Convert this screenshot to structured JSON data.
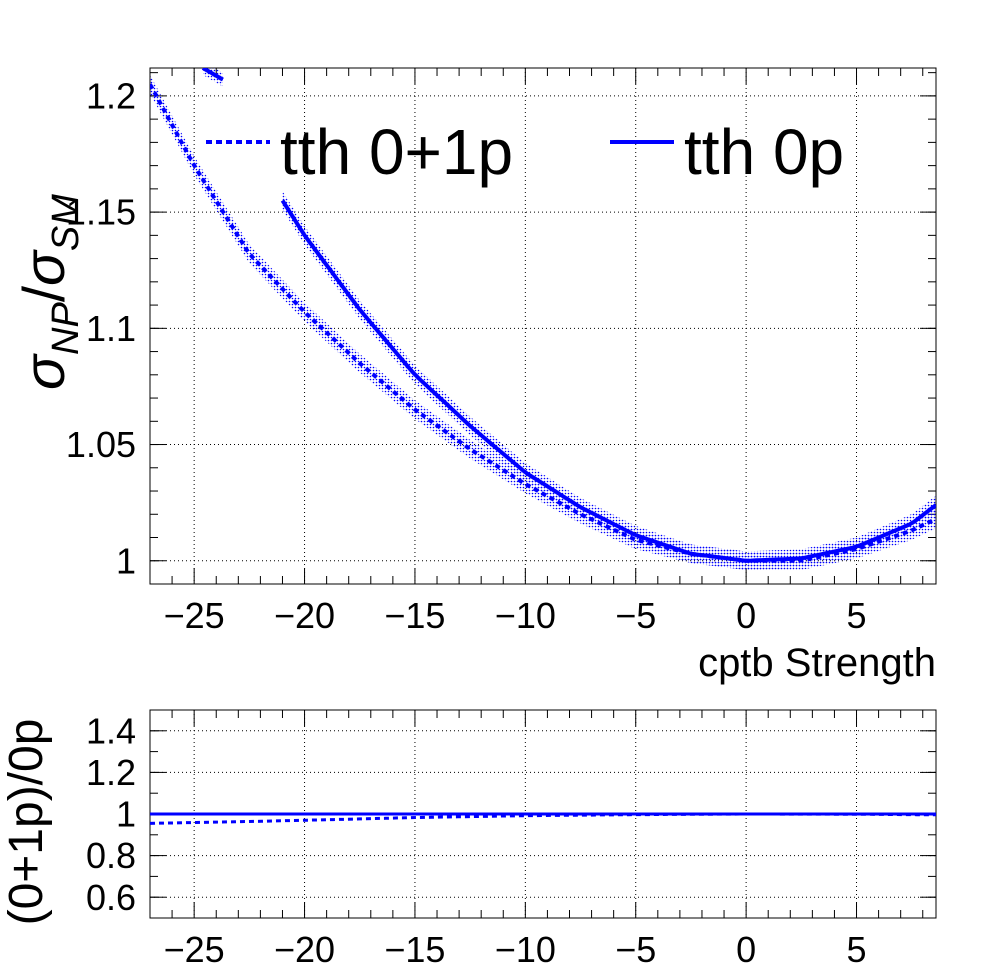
{
  "chart_data": [
    {
      "type": "line",
      "title": "",
      "xlabel": "cptb Strength",
      "ylabel_main": "σ",
      "ylabel_sub_np": "NP",
      "ylabel_slash": "/",
      "ylabel_sub_sm": "SM",
      "xlim": [
        -27,
        8.6
      ],
      "ylim": [
        0.99,
        1.212
      ],
      "grid": true,
      "legend_position": "top",
      "xticks": [
        -25,
        -20,
        -15,
        -10,
        -5,
        0,
        5
      ],
      "xtick_labels": [
        "−25",
        "−20",
        "−15",
        "−10",
        "−5",
        "0",
        "5"
      ],
      "yticks": [
        1,
        1.05,
        1.1,
        1.15,
        1.2
      ],
      "ytick_labels": [
        "1",
        "1.05",
        "1.1",
        "1.15",
        "1.2"
      ],
      "color": "#0000ff",
      "series": [
        {
          "name": "tth 0+1p",
          "style": "dashed",
          "x": [
            -27,
            -25,
            -22.5,
            -20,
            -17.5,
            -15,
            -12.5,
            -10,
            -7.5,
            -5,
            -2.5,
            0,
            2.5,
            5,
            7.5,
            8.6
          ],
          "y": [
            1.205,
            1.17,
            1.132,
            1.107,
            1.085,
            1.065,
            1.048,
            1.033,
            1.02,
            1.009,
            1.003,
            1.0,
            1.0,
            1.005,
            1.013,
            1.018
          ],
          "band": 0.004
        },
        {
          "name": "tth 0p",
          "style": "solid",
          "x": [
            -21,
            -20,
            -17.5,
            -15,
            -12.5,
            -10,
            -7.5,
            -5,
            -2.5,
            0,
            2.5,
            5,
            7.5,
            8.6
          ],
          "y": [
            1.155,
            1.14,
            1.108,
            1.08,
            1.058,
            1.038,
            1.023,
            1.011,
            1.003,
            1.0,
            1.001,
            1.006,
            1.016,
            1.024
          ],
          "band": 0.004
        },
        {
          "name": "tth 0p",
          "style": "solid",
          "legend": false,
          "x": [
            -24.6,
            -23.7
          ],
          "y": [
            1.212,
            1.207
          ],
          "band": 0.003
        }
      ]
    },
    {
      "type": "line",
      "title": "",
      "xlabel": "",
      "ylabel": "(0+1p)/0p",
      "xlim": [
        -27,
        8.6
      ],
      "ylim": [
        0.5,
        1.5
      ],
      "grid": true,
      "xticks": [
        -25,
        -20,
        -15,
        -10,
        -5,
        0,
        5
      ],
      "xtick_labels": [
        "−25",
        "−20",
        "−15",
        "−10",
        "−5",
        "0",
        "5"
      ],
      "yticks": [
        0.6,
        0.8,
        1,
        1.2,
        1.4
      ],
      "ytick_labels": [
        "0.6",
        "0.8",
        "1",
        "1.2",
        "1.4"
      ],
      "color": "#0000ff",
      "series": [
        {
          "name": "tth 0+1p",
          "style": "dashed",
          "x": [
            -27,
            -22,
            -18,
            -15,
            -10,
            -5,
            0,
            5,
            8.6
          ],
          "y": [
            0.955,
            0.965,
            0.975,
            0.983,
            0.992,
            0.997,
            1.0,
            0.999,
            0.996
          ]
        },
        {
          "name": "tth 0p",
          "style": "solid",
          "x": [
            -27,
            8.6
          ],
          "y": [
            1.0,
            1.0
          ]
        }
      ]
    }
  ]
}
